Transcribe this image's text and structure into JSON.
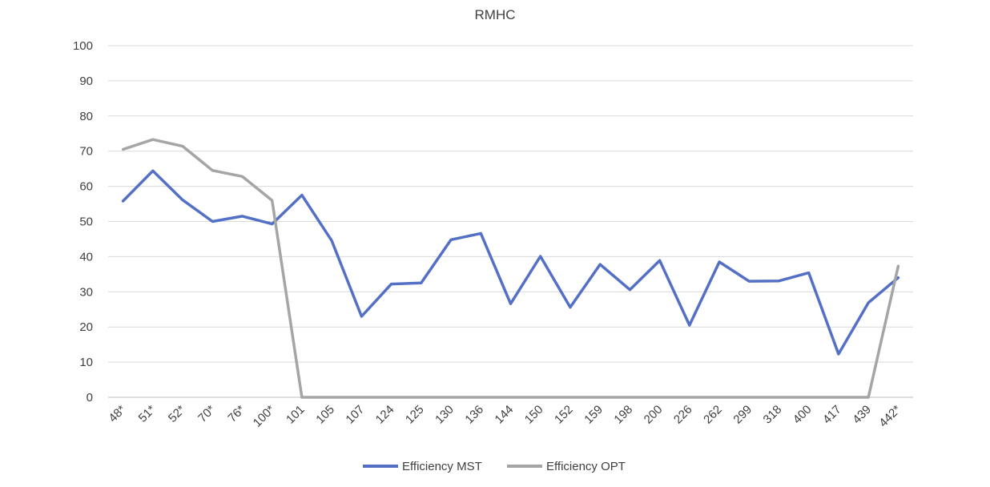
{
  "chart_data": {
    "type": "line",
    "title": "RMHC",
    "categories": [
      "48*",
      "51*",
      "52*",
      "70*",
      "76*",
      "100*",
      "101",
      "105",
      "107",
      "124",
      "125",
      "130",
      "136",
      "144",
      "150",
      "152",
      "159",
      "198",
      "200",
      "226",
      "262",
      "299",
      "318",
      "400",
      "417",
      "439",
      "442*"
    ],
    "ylim": [
      0,
      100
    ],
    "yticks": [
      0,
      10,
      20,
      30,
      40,
      50,
      60,
      70,
      80,
      90,
      100
    ],
    "grid": true,
    "legend_position": "bottom",
    "series": [
      {
        "name": "Efficiency MST",
        "color": "#5470c6",
        "values": [
          55.8,
          64.4,
          56.1,
          50.0,
          51.5,
          49.3,
          57.5,
          44.5,
          23.0,
          32.2,
          32.5,
          44.8,
          46.6,
          26.6,
          40.1,
          25.6,
          37.8,
          30.6,
          38.9,
          20.5,
          38.5,
          33.0,
          33.1,
          35.4,
          12.3,
          26.9,
          34.0
        ]
      },
      {
        "name": "Efficiency OPT",
        "color": "#a5a5a5",
        "values": [
          70.5,
          73.3,
          71.4,
          64.5,
          62.8,
          56.0,
          0,
          0,
          0,
          0,
          0,
          0,
          0,
          0,
          0,
          0,
          0,
          0,
          0,
          0,
          0,
          0,
          0,
          0,
          0,
          0,
          37.3
        ]
      }
    ]
  }
}
